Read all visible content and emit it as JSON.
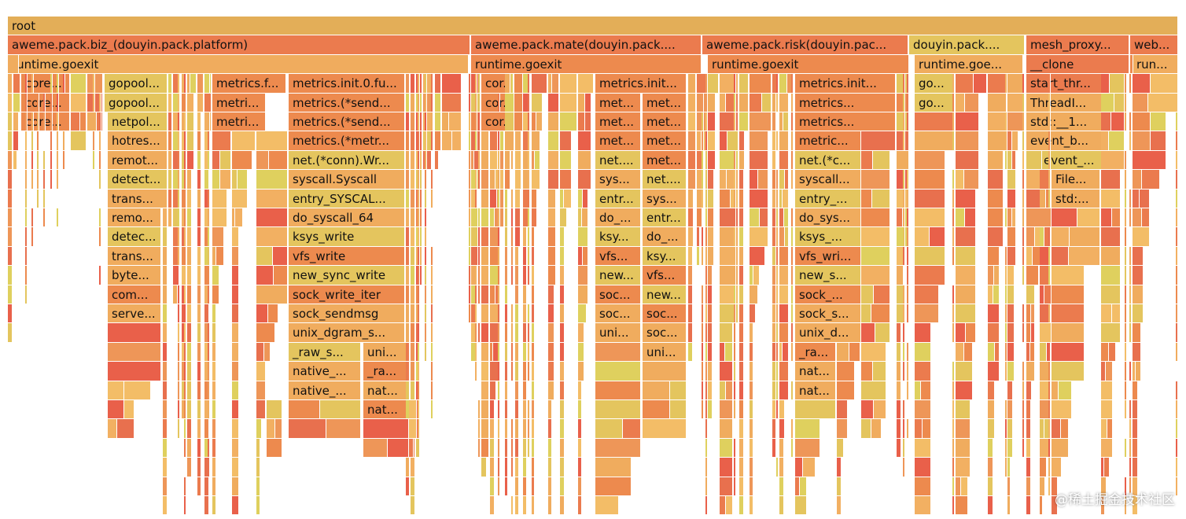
{
  "palette": [
    "#F0AC5E",
    "#ED8A4E",
    "#E4C55E",
    "#EB7B4E",
    "#F2B062",
    "#E8704E",
    "#DFD05E",
    "#EE9658",
    "#E9604A",
    "#F3BD67"
  ],
  "root": {
    "label": "root",
    "color": "#E3AE58"
  },
  "row1": [
    {
      "label": "aweme.pack.biz_(douyin.pack.platform)",
      "color": "#EB7B4E"
    },
    {
      "label": "aweme.pack.mate(douyin.pack....",
      "color": "#EB7B4E"
    },
    {
      "label": "aweme.pack.risk(douyin.pac...",
      "color": "#EB7B4E"
    },
    {
      "label": "douyin.pack....",
      "color": "#E4C55E"
    },
    {
      "label": "mesh_proxy...",
      "color": "#EB7B4E"
    },
    {
      "label": "web...",
      "color": "#EB7B4E"
    }
  ],
  "row2": [
    {
      "label": "runtime.goexit",
      "color": "#F0AC5E"
    },
    {
      "label": "runtime.goexit",
      "color": "#ED8A4E"
    },
    {
      "label": "runtime.goexit",
      "color": "#ED8A4E"
    },
    {
      "label": "runtime.goe...",
      "color": "#F0AC5E"
    },
    {
      "label": "__clone",
      "color": "#EB7B4E"
    },
    {
      "label": "run...",
      "color": "#F0AC5E"
    }
  ],
  "labeled": [
    {
      "label": "core...",
      "color": "#ED8A4E"
    },
    {
      "label": "core...",
      "color": "#ED8A4E"
    },
    {
      "label": "core...",
      "color": "#ED8A4E"
    },
    {
      "label": "gopool...",
      "color": "#E4C55E"
    },
    {
      "label": "gopool...",
      "color": "#E4C55E"
    },
    {
      "label": "netpol...",
      "color": "#E4C55E"
    },
    {
      "label": "hotres...",
      "color": "#F0AC5E"
    },
    {
      "label": "remot...",
      "color": "#F0AC5E"
    },
    {
      "label": "detect...",
      "color": "#E4C55E"
    },
    {
      "label": "trans...",
      "color": "#F0AC5E"
    },
    {
      "label": "remo...",
      "color": "#F0AC5E"
    },
    {
      "label": "detec...",
      "color": "#E4C55E"
    },
    {
      "label": "trans...",
      "color": "#F0AC5E"
    },
    {
      "label": "byte...",
      "color": "#F0AC5E"
    },
    {
      "label": "com...",
      "color": "#ED8A4E"
    },
    {
      "label": "serve...",
      "color": "#F0AC5E"
    },
    {
      "label": "metrics.f...",
      "color": "#ED8A4E"
    },
    {
      "label": "metri...",
      "color": "#ED8A4E"
    },
    {
      "label": "metri...",
      "color": "#ED8A4E"
    },
    {
      "label": "metrics.init.0.fu...",
      "color": "#ED8A4E"
    },
    {
      "label": "metrics.(*send...",
      "color": "#ED8A4E"
    },
    {
      "label": "metrics.(*send...",
      "color": "#ED8A4E"
    },
    {
      "label": "metrics.(*metr...",
      "color": "#ED8A4E"
    },
    {
      "label": "net.(*conn).Wr...",
      "color": "#E4C55E"
    },
    {
      "label": "syscall.Syscall",
      "color": "#F0AC5E"
    },
    {
      "label": "entry_SYSCAL...",
      "color": "#E4C55E"
    },
    {
      "label": "do_syscall_64",
      "color": "#F0AC5E"
    },
    {
      "label": "ksys_write",
      "color": "#E4C55E"
    },
    {
      "label": "vfs_write",
      "color": "#ED8A4E"
    },
    {
      "label": "new_sync_write",
      "color": "#E4C55E"
    },
    {
      "label": "sock_write_iter",
      "color": "#ED8A4E"
    },
    {
      "label": "sock_sendmsg",
      "color": "#F0AC5E"
    },
    {
      "label": "unix_dgram_s...",
      "color": "#F0AC5E"
    },
    {
      "label": "_raw_s...",
      "color": "#E4C55E"
    },
    {
      "label": "uni...",
      "color": "#F0AC5E"
    },
    {
      "label": "native_...",
      "color": "#F0AC5E"
    },
    {
      "label": "_ra...",
      "color": "#ED8A4E"
    },
    {
      "label": "native_...",
      "color": "#F0AC5E"
    },
    {
      "label": "nat...",
      "color": "#F0AC5E"
    },
    {
      "label": "nat...",
      "color": "#ED8A4E"
    },
    {
      "label": "cor...",
      "color": "#ED8A4E"
    },
    {
      "label": "cor...",
      "color": "#ED8A4E"
    },
    {
      "label": "cor...",
      "color": "#ED8A4E"
    },
    {
      "label": "metrics.init...",
      "color": "#ED8A4E"
    },
    {
      "label": "met...",
      "color": "#ED8A4E"
    },
    {
      "label": "met...",
      "color": "#ED8A4E"
    },
    {
      "label": "met...",
      "color": "#ED8A4E"
    },
    {
      "label": "met...",
      "color": "#ED8A4E"
    },
    {
      "label": "met...",
      "color": "#ED8A4E"
    },
    {
      "label": "met...",
      "color": "#ED8A4E"
    },
    {
      "label": "net....",
      "color": "#E4C55E"
    },
    {
      "label": "met...",
      "color": "#ED8A4E"
    },
    {
      "label": "sys...",
      "color": "#F0AC5E"
    },
    {
      "label": "net....",
      "color": "#E4C55E"
    },
    {
      "label": "entr...",
      "color": "#E4C55E"
    },
    {
      "label": "sys...",
      "color": "#F0AC5E"
    },
    {
      "label": "do_...",
      "color": "#F0AC5E"
    },
    {
      "label": "entr...",
      "color": "#E4C55E"
    },
    {
      "label": "ksy...",
      "color": "#E4C55E"
    },
    {
      "label": "do_...",
      "color": "#F0AC5E"
    },
    {
      "label": "vfs...",
      "color": "#ED8A4E"
    },
    {
      "label": "ksy...",
      "color": "#E4C55E"
    },
    {
      "label": "new...",
      "color": "#E4C55E"
    },
    {
      "label": "vfs...",
      "color": "#ED8A4E"
    },
    {
      "label": "soc...",
      "color": "#ED8A4E"
    },
    {
      "label": "new...",
      "color": "#E4C55E"
    },
    {
      "label": "soc...",
      "color": "#F0AC5E"
    },
    {
      "label": "soc...",
      "color": "#ED8A4E"
    },
    {
      "label": "uni...",
      "color": "#F0AC5E"
    },
    {
      "label": "soc...",
      "color": "#F0AC5E"
    },
    {
      "label": "uni...",
      "color": "#F0AC5E"
    },
    {
      "label": "metrics.init...",
      "color": "#ED8A4E"
    },
    {
      "label": "metrics...",
      "color": "#ED8A4E"
    },
    {
      "label": "metrics...",
      "color": "#ED8A4E"
    },
    {
      "label": "metric...",
      "color": "#ED8A4E"
    },
    {
      "label": "net.(*c...",
      "color": "#E4C55E"
    },
    {
      "label": "syscall...",
      "color": "#F0AC5E"
    },
    {
      "label": "entry_...",
      "color": "#E4C55E"
    },
    {
      "label": "do_sys...",
      "color": "#F0AC5E"
    },
    {
      "label": "ksys_...",
      "color": "#E4C55E"
    },
    {
      "label": "vfs_wri...",
      "color": "#ED8A4E"
    },
    {
      "label": "new_s...",
      "color": "#E4C55E"
    },
    {
      "label": "sock_...",
      "color": "#ED8A4E"
    },
    {
      "label": "sock_s...",
      "color": "#F0AC5E"
    },
    {
      "label": "unix_d...",
      "color": "#F0AC5E"
    },
    {
      "label": "_ra...",
      "color": "#ED8A4E"
    },
    {
      "label": "nat...",
      "color": "#F0AC5E"
    },
    {
      "label": "nat...",
      "color": "#F0AC5E"
    },
    {
      "label": "go...",
      "color": "#E4C55E"
    },
    {
      "label": "go...",
      "color": "#E4C55E"
    },
    {
      "label": "start_thr...",
      "color": "#EB7B4E"
    },
    {
      "label": "ThreadI...",
      "color": "#F0AC5E"
    },
    {
      "label": "std::__1...",
      "color": "#F0AC5E"
    },
    {
      "label": "event_b...",
      "color": "#F0AC5E"
    },
    {
      "label": "event_...",
      "color": "#E4C55E"
    },
    {
      "label": "File...",
      "color": "#F0AC5E"
    },
    {
      "label": "std:...",
      "color": "#F0AC5E"
    }
  ],
  "watermark": "@稀土掘金技术社区"
}
